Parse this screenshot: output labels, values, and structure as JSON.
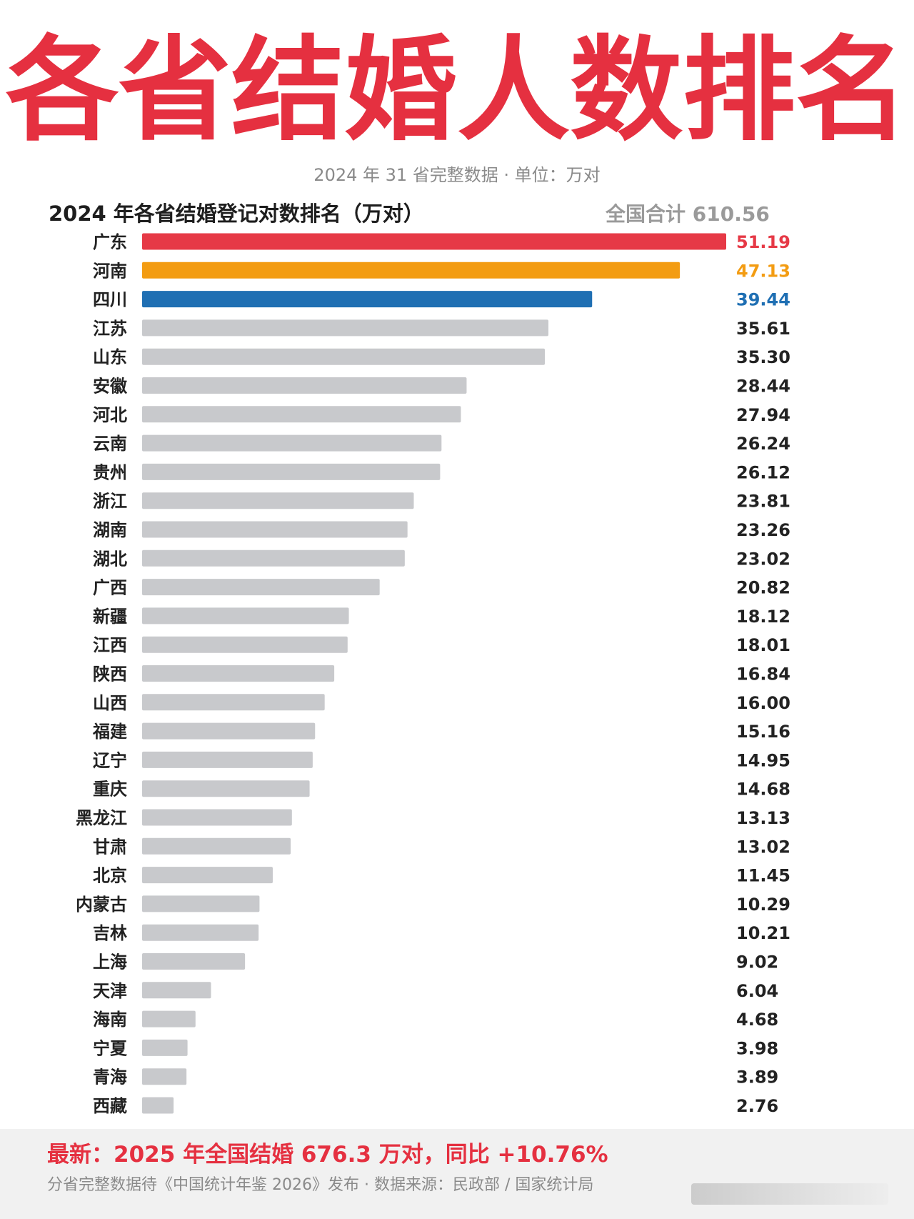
{
  "headline": "各省结婚人数排名",
  "subtitle": "2024 年 31 省完整数据 · 单位：万对",
  "chart_data": {
    "type": "bar",
    "orientation": "horizontal",
    "title": "2024 年各省结婚登记对数排名（万对）",
    "total_label": "全国合计 610.56",
    "unit": "万对",
    "categories": [
      "广东",
      "河南",
      "四川",
      "江苏",
      "山东",
      "安徽",
      "河北",
      "云南",
      "贵州",
      "浙江",
      "湖南",
      "湖北",
      "广西",
      "新疆",
      "江西",
      "陕西",
      "山西",
      "福建",
      "辽宁",
      "重庆",
      "黑龙江",
      "甘肃",
      "北京",
      "内蒙古",
      "吉林",
      "上海",
      "天津",
      "海南",
      "宁夏",
      "青海",
      "西藏"
    ],
    "value_labels": [
      "51.19",
      "47.13",
      "39.44",
      "35.61",
      "35.30",
      "28.44",
      "27.94",
      "26.24",
      "26.12",
      "23.81",
      "23.26",
      "23.02",
      "20.82",
      "18.12",
      "18.01",
      "16.84",
      "16.00",
      "15.16",
      "14.95",
      "14.68",
      "13.13",
      "13.02",
      "11.45",
      "10.29",
      "10.21",
      "9.02",
      "6.04",
      "4.68",
      "3.98",
      "3.89",
      "2.76"
    ],
    "values": [
      51.19,
      47.13,
      39.44,
      35.61,
      35.3,
      28.44,
      27.94,
      26.24,
      26.12,
      23.81,
      23.26,
      23.02,
      20.82,
      18.12,
      18.01,
      16.84,
      16.0,
      15.16,
      14.95,
      14.68,
      13.13,
      13.02,
      11.45,
      10.29,
      10.21,
      9.02,
      6.04,
      4.68,
      3.98,
      3.89,
      2.76
    ],
    "colors": {
      "first": "#e63946",
      "second": "#f39c12",
      "third": "#1f6fb3",
      "default": "#c8c9cc",
      "label_default": "#222222"
    },
    "xlim": [
      0,
      51.19
    ]
  },
  "footer": {
    "latest": "最新：2025 年全国结婚 676.3 万对，同比 +10.76%",
    "source": "分省完整数据待《中国统计年鉴 2026》发布 · 数据来源：民政部 / 国家统计局"
  }
}
